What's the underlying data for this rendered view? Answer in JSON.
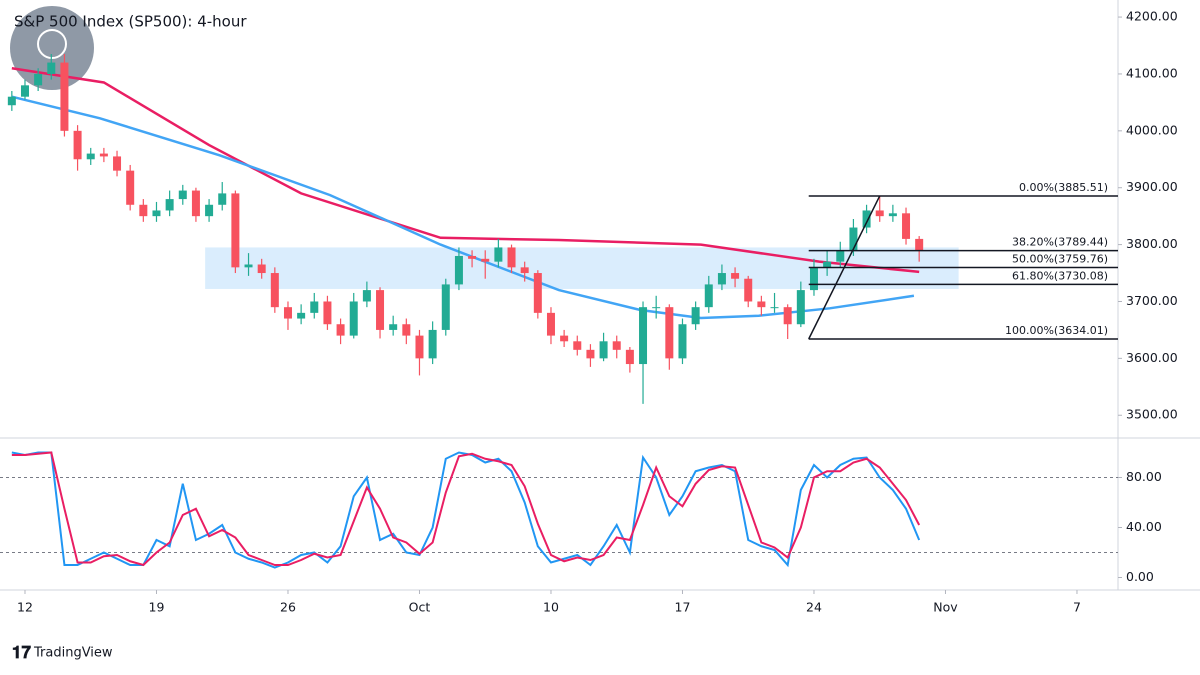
{
  "chart_data": [
    {
      "type": "candlestick",
      "title": "S&P 500 Index (SP500): 4-hour",
      "brand": "TradingView",
      "x": [
        -0.5,
        0,
        0.5,
        1,
        1.5,
        2,
        2.5,
        3,
        3.5,
        4,
        4.5,
        5,
        5.5,
        6,
        6.5,
        7,
        7.5,
        8,
        8.5,
        9,
        9.5,
        10,
        10.5,
        11,
        11.5,
        12,
        12.5,
        13,
        13.5,
        14,
        14.5,
        15,
        15.5,
        16,
        16.5,
        17,
        17.5,
        18,
        18.5,
        19,
        19.5,
        20,
        20.5,
        21,
        21.5,
        22,
        22.5,
        23,
        23.5,
        24,
        24.5,
        25,
        25.5,
        26,
        26.5,
        27,
        27.5,
        28,
        28.5,
        29,
        29.5,
        30,
        30.5,
        31,
        31.5,
        32,
        32.5,
        33,
        33.5,
        34
      ],
      "ohlc": [
        [
          4045,
          4070,
          4035,
          4060
        ],
        [
          4060,
          4090,
          4055,
          4080
        ],
        [
          4080,
          4110,
          4070,
          4100
        ],
        [
          4100,
          4135,
          4090,
          4120
        ],
        [
          4120,
          4135,
          3990,
          4000
        ],
        [
          4000,
          4010,
          3930,
          3950
        ],
        [
          3950,
          3970,
          3940,
          3960
        ],
        [
          3960,
          3970,
          3945,
          3955
        ],
        [
          3955,
          3965,
          3920,
          3930
        ],
        [
          3930,
          3940,
          3860,
          3870
        ],
        [
          3870,
          3880,
          3840,
          3850
        ],
        [
          3850,
          3875,
          3840,
          3860
        ],
        [
          3860,
          3895,
          3850,
          3880
        ],
        [
          3880,
          3905,
          3870,
          3895
        ],
        [
          3895,
          3900,
          3840,
          3850
        ],
        [
          3850,
          3880,
          3840,
          3870
        ],
        [
          3870,
          3910,
          3860,
          3890
        ],
        [
          3890,
          3895,
          3750,
          3760
        ],
        [
          3760,
          3785,
          3745,
          3765
        ],
        [
          3765,
          3775,
          3740,
          3750
        ],
        [
          3750,
          3760,
          3680,
          3690
        ],
        [
          3690,
          3700,
          3650,
          3670
        ],
        [
          3670,
          3695,
          3660,
          3680
        ],
        [
          3680,
          3715,
          3670,
          3700
        ],
        [
          3700,
          3710,
          3650,
          3660
        ],
        [
          3660,
          3670,
          3625,
          3640
        ],
        [
          3640,
          3715,
          3635,
          3700
        ],
        [
          3700,
          3735,
          3690,
          3720
        ],
        [
          3720,
          3725,
          3635,
          3650
        ],
        [
          3650,
          3675,
          3640,
          3660
        ],
        [
          3660,
          3670,
          3625,
          3640
        ],
        [
          3640,
          3650,
          3570,
          3600
        ],
        [
          3600,
          3665,
          3590,
          3650
        ],
        [
          3650,
          3740,
          3640,
          3730
        ],
        [
          3730,
          3795,
          3720,
          3780
        ],
        [
          3780,
          3790,
          3760,
          3775
        ],
        [
          3775,
          3790,
          3740,
          3770
        ],
        [
          3770,
          3810,
          3760,
          3795
        ],
        [
          3795,
          3800,
          3750,
          3760
        ],
        [
          3760,
          3770,
          3735,
          3750
        ],
        [
          3750,
          3755,
          3670,
          3680
        ],
        [
          3680,
          3690,
          3625,
          3640
        ],
        [
          3640,
          3650,
          3620,
          3630
        ],
        [
          3630,
          3640,
          3605,
          3615
        ],
        [
          3615,
          3625,
          3585,
          3600
        ],
        [
          3600,
          3645,
          3595,
          3630
        ],
        [
          3630,
          3640,
          3600,
          3615
        ],
        [
          3615,
          3620,
          3575,
          3590
        ],
        [
          3590,
          3700,
          3520,
          3690
        ],
        [
          3690,
          3710,
          3670,
          3690
        ],
        [
          3690,
          3695,
          3580,
          3600
        ],
        [
          3600,
          3670,
          3590,
          3660
        ],
        [
          3660,
          3700,
          3650,
          3690
        ],
        [
          3690,
          3745,
          3680,
          3730
        ],
        [
          3730,
          3765,
          3720,
          3750
        ],
        [
          3750,
          3760,
          3725,
          3740
        ],
        [
          3740,
          3745,
          3690,
          3700
        ],
        [
          3700,
          3710,
          3675,
          3690
        ],
        [
          3690,
          3715,
          3680,
          3690
        ],
        [
          3690,
          3695,
          3634.01,
          3660
        ],
        [
          3660,
          3735,
          3655,
          3720
        ],
        [
          3720,
          3775,
          3710,
          3760
        ],
        [
          3760,
          3790,
          3745,
          3770
        ],
        [
          3770,
          3805,
          3760,
          3790
        ],
        [
          3790,
          3845,
          3780,
          3830
        ],
        [
          3830,
          3870,
          3820,
          3860
        ],
        [
          3860,
          3885.51,
          3840,
          3850
        ],
        [
          3850,
          3870,
          3840,
          3855
        ],
        [
          3855,
          3865,
          3800,
          3810
        ],
        [
          3810,
          3815,
          3770,
          3790
        ]
      ],
      "up_color": "#22ab94",
      "down_color": "#f7525f",
      "series": [
        {
          "color": "#e91e63",
          "x": [
            -0.5,
            3,
            7,
            10.5,
            15.8,
            20.3,
            25.7,
            30.2,
            34
          ],
          "values": [
            4110,
            4085,
            3975,
            3890,
            3812,
            3808,
            3800,
            3770,
            3752
          ]
        },
        {
          "color": "#42a5f5",
          "x": [
            -0.5,
            2.85,
            7.4,
            11.6,
            15.8,
            20.3,
            23.4,
            25.7,
            27.9,
            30.6,
            33.8
          ],
          "values": [
            4060,
            4022,
            3957,
            3887,
            3800,
            3720,
            3685,
            3671,
            3675,
            3688,
            3710
          ]
        }
      ],
      "highlight_zone": {
        "x": [
          6.85,
          35.5
        ],
        "y": [
          3722,
          3795
        ],
        "color": "#bbdefb"
      },
      "fib_start": 29.8,
      "fib_swing_x": [
        29.8,
        32.5
      ],
      "fib_levels": [
        {
          "value": 3885.51,
          "label": "0.00%(3885.51)"
        },
        {
          "value": 3789.44,
          "label": "38.20%(3789.44)"
        },
        {
          "value": 3759.76,
          "label": "50.00%(3759.76)"
        },
        {
          "value": 3730.08,
          "label": "61.80%(3730.08)"
        },
        {
          "value": 3634.01,
          "label": "100.00%(3634.01)"
        }
      ],
      "xlim": [
        -0.95,
        41.56
      ],
      "xticks": [
        {
          "value": 0,
          "label": "12"
        },
        {
          "value": 5,
          "label": "19"
        },
        {
          "value": 10,
          "label": "26"
        },
        {
          "value": 15,
          "label": "Oct"
        },
        {
          "value": 20,
          "label": "10"
        },
        {
          "value": 25,
          "label": "17"
        },
        {
          "value": 30,
          "label": "24"
        },
        {
          "value": 35,
          "label": "Nov"
        },
        {
          "value": 40,
          "label": "7"
        }
      ],
      "ylim": [
        3460,
        4230
      ],
      "yticks": [
        {
          "value": 3500,
          "label": "3500.00"
        },
        {
          "value": 3600,
          "label": "3600.00"
        },
        {
          "value": 3700,
          "label": "3700.00"
        },
        {
          "value": 3800,
          "label": "3800.00"
        },
        {
          "value": 3900,
          "label": "3900.00"
        },
        {
          "value": 4000,
          "label": "4000.00"
        },
        {
          "value": 4100,
          "label": "4100.00"
        },
        {
          "value": 4200,
          "label": "4200.00"
        }
      ]
    },
    {
      "type": "line",
      "series": [
        {
          "color": "#2196f3",
          "values": [
            100,
            98,
            100,
            100,
            10,
            10,
            15,
            20,
            15,
            10,
            10,
            30,
            25,
            75,
            30,
            35,
            42,
            20,
            15,
            12,
            8,
            12,
            18,
            20,
            12,
            25,
            65,
            80,
            30,
            35,
            20,
            18,
            40,
            95,
            100,
            98,
            92,
            95,
            85,
            60,
            25,
            12,
            15,
            18,
            10,
            25,
            42,
            20,
            96,
            80,
            50,
            65,
            85,
            88,
            90,
            85,
            30,
            25,
            22,
            10,
            70,
            90,
            80,
            90,
            95,
            96,
            80,
            70,
            55,
            30
          ]
        },
        {
          "color": "#e91e63",
          "values": [
            98,
            98,
            99,
            100,
            55,
            12,
            12,
            17,
            18,
            13,
            10,
            20,
            28,
            50,
            55,
            33,
            38,
            32,
            18,
            14,
            10,
            10,
            14,
            19,
            16,
            18,
            45,
            72,
            55,
            32,
            28,
            19,
            28,
            68,
            97,
            99,
            95,
            93,
            90,
            73,
            43,
            18,
            13,
            16,
            14,
            18,
            32,
            30,
            58,
            88,
            65,
            57,
            75,
            86,
            89,
            88,
            58,
            28,
            24,
            16,
            40,
            80,
            85,
            85,
            92,
            95,
            88,
            75,
            62,
            42
          ]
        }
      ],
      "bands": [
        20,
        80
      ],
      "ylim": [
        -10,
        110
      ],
      "yticks": [
        {
          "value": 0,
          "label": "0.00"
        },
        {
          "value": 40,
          "label": "40.00"
        },
        {
          "value": 80,
          "label": "80.00"
        }
      ]
    }
  ]
}
